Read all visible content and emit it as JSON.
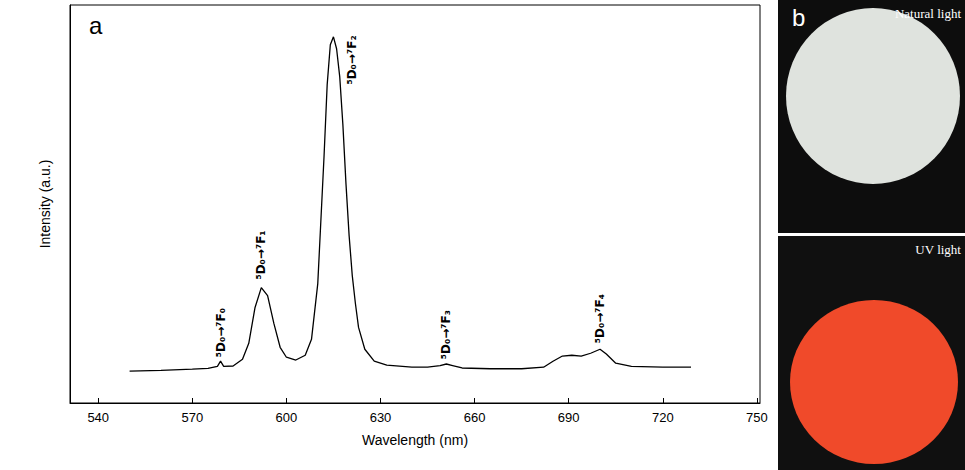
{
  "chart_data": {
    "type": "line",
    "panel_label": "a",
    "xlabel": "Wavelength (nm)",
    "ylabel": "Intensity (a.u.)",
    "color": "#000000",
    "x": [
      550,
      560,
      570,
      575,
      578,
      579,
      580,
      583,
      586,
      588,
      590,
      592,
      594,
      596,
      598,
      600,
      603,
      606,
      608,
      610,
      612,
      613,
      614,
      615,
      616,
      617,
      618,
      619,
      620,
      621,
      622,
      623,
      625,
      628,
      632,
      640,
      645,
      649,
      651,
      653,
      656,
      665,
      675,
      682,
      685,
      688,
      691,
      694,
      697,
      700,
      702,
      705,
      710,
      720,
      729
    ],
    "values": [
      8.0,
      8.2,
      8.5,
      8.7,
      9.2,
      10.5,
      9.2,
      9.3,
      11,
      15,
      24,
      29,
      27,
      20,
      14,
      11.5,
      10.8,
      12,
      16,
      30,
      62,
      80,
      90,
      92,
      89,
      82,
      70,
      55,
      42,
      32,
      25,
      19,
      13.5,
      10.5,
      9.5,
      9.0,
      9.0,
      9.4,
      9.8,
      9.4,
      8.8,
      8.6,
      8.6,
      9.0,
      10.5,
      11.8,
      12.0,
      11.8,
      12.5,
      13.5,
      12.3,
      10,
      9.2,
      9.0,
      9.0
    ],
    "xlim": [
      531,
      751
    ],
    "xticks": [
      540,
      570,
      600,
      630,
      660,
      690,
      720,
      750
    ],
    "ylim": [
      0,
      100
    ],
    "tick_labels": "x",
    "grid": false,
    "annotations": [
      {
        "text": "⁵D₀→⁷F₀",
        "x": 579,
        "y": 11.5
      },
      {
        "text": "⁵D₀→⁷F₁",
        "x": 592,
        "y": 31
      },
      {
        "text": "⁵D₀→⁷F₂",
        "x": 621,
        "y": 80
      },
      {
        "text": "⁵D₀→⁷F₃",
        "x": 651,
        "y": 11
      },
      {
        "text": "⁵D₀→⁷F₄",
        "x": 700,
        "y": 15
      }
    ]
  },
  "panel_b": {
    "label": "b",
    "images": [
      {
        "caption": "Natural light",
        "color": "#dfe3de"
      },
      {
        "caption": "UV light",
        "color": "#f04a2a"
      }
    ]
  }
}
